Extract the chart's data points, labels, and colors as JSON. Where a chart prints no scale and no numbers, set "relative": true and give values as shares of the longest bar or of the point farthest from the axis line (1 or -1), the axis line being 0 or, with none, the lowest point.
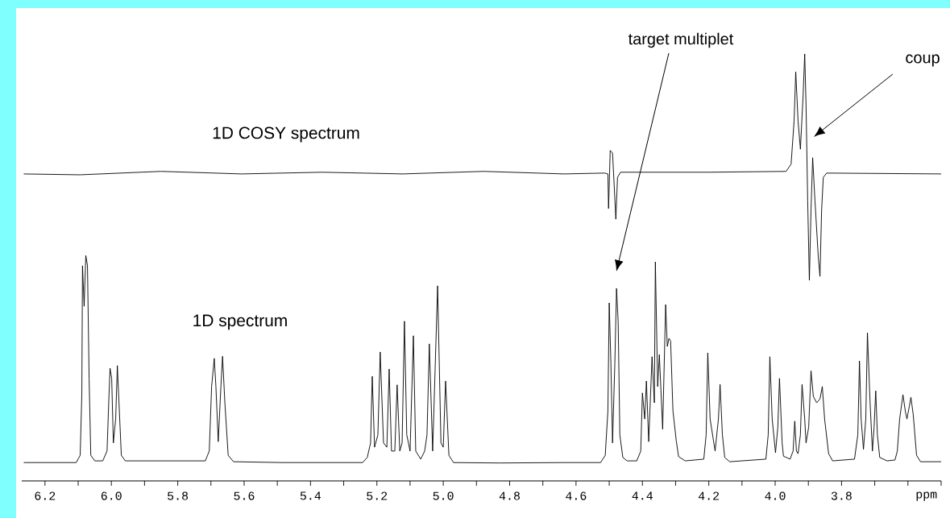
{
  "chart_data": {
    "type": "line",
    "relative": true,
    "xlabel": "ppm",
    "xlim": [
      6.27,
      3.5
    ],
    "xticks": [
      6.2,
      {
        "value": 6.1,
        "label": null
      },
      {
        "value": 6.0,
        "label": "6.0"
      },
      {
        "value": 5.9,
        "label": null
      },
      5.8,
      {
        "value": 5.7,
        "label": null
      },
      5.6,
      {
        "value": 5.5,
        "label": null
      },
      5.4,
      {
        "value": 5.3,
        "label": null
      },
      5.2,
      {
        "value": 5.1,
        "label": null
      },
      {
        "value": 5.0,
        "label": "5.0"
      },
      {
        "value": 4.9,
        "label": null
      },
      4.8,
      {
        "value": 4.7,
        "label": null
      },
      4.6,
      {
        "value": 4.5,
        "label": null
      },
      4.4,
      {
        "value": 4.3,
        "label": null
      },
      4.2,
      {
        "value": 4.1,
        "label": null
      },
      {
        "value": 4.0,
        "label": "4.0"
      },
      {
        "value": 3.9,
        "label": null
      },
      3.8,
      {
        "value": 3.7,
        "label": null
      },
      {
        "value": 3.6,
        "label": null
      },
      {
        "value": 3.5,
        "label": null
      }
    ],
    "series": [
      {
        "name": "1D COSY spectrum",
        "color": "#000000",
        "x": [
          6.264,
          6.094,
          5.851,
          5.608,
          5.365,
          5.122,
          4.879,
          4.636,
          4.514,
          4.504,
          4.502,
          4.5,
          4.497,
          4.49,
          4.485,
          4.48,
          4.475,
          4.466,
          4.199,
          3.967,
          3.952,
          3.943,
          3.938,
          3.931,
          3.924,
          3.916,
          3.911,
          3.907,
          3.902,
          3.897,
          3.892,
          3.887,
          3.88,
          3.87,
          3.865,
          3.86,
          3.855,
          3.845,
          3.5
        ],
        "values": [
          0.719,
          0.717,
          0.725,
          0.719,
          0.723,
          0.719,
          0.725,
          0.719,
          0.721,
          0.719,
          0.638,
          0.692,
          0.774,
          0.768,
          0.692,
          0.613,
          0.711,
          0.723,
          0.723,
          0.725,
          0.742,
          0.843,
          0.958,
          0.843,
          0.777,
          0.9,
          1.0,
          0.881,
          0.655,
          0.47,
          0.636,
          0.757,
          0.655,
          0.523,
          0.479,
          0.636,
          0.711,
          0.721,
          0.719
        ]
      },
      {
        "name": "1D spectrum",
        "color": "#000000",
        "x": [
          6.264,
          6.106,
          6.094,
          6.089,
          6.087,
          6.082,
          6.077,
          6.072,
          6.067,
          6.062,
          6.05,
          6.026,
          6.013,
          6.008,
          6.004,
          5.999,
          5.994,
          5.987,
          5.982,
          5.977,
          5.97,
          5.958,
          5.717,
          5.705,
          5.698,
          5.69,
          5.685,
          5.678,
          5.67,
          5.665,
          5.658,
          5.648,
          5.632,
          5.486,
          5.365,
          5.243,
          5.229,
          5.219,
          5.214,
          5.207,
          5.197,
          5.19,
          5.18,
          5.17,
          5.163,
          5.156,
          5.146,
          5.139,
          5.131,
          5.124,
          5.117,
          5.11,
          5.1,
          5.09,
          5.083,
          5.068,
          5.056,
          5.049,
          5.042,
          5.032,
          5.017,
          5.007,
          5.0,
          4.993,
          4.983,
          4.969,
          4.83,
          4.636,
          4.526,
          4.512,
          4.504,
          4.5,
          4.495,
          4.49,
          4.483,
          4.478,
          4.473,
          4.468,
          4.459,
          4.446,
          4.417,
          4.405,
          4.4,
          4.393,
          4.388,
          4.381,
          4.371,
          4.364,
          4.361,
          4.354,
          4.349,
          4.339,
          4.33,
          4.325,
          4.32,
          4.315,
          4.308,
          4.298,
          4.291,
          4.271,
          4.215,
          4.208,
          4.203,
          4.196,
          4.181,
          4.171,
          4.166,
          4.159,
          4.152,
          4.137,
          4.028,
          4.021,
          4.016,
          4.009,
          3.999,
          3.992,
          3.987,
          3.979,
          3.975,
          3.955,
          3.946,
          3.941,
          3.936,
          3.931,
          3.924,
          3.919,
          3.911,
          3.907,
          3.899,
          3.892,
          3.885,
          3.875,
          3.865,
          3.858,
          3.851,
          3.839,
          3.827,
          3.761,
          3.751,
          3.746,
          3.741,
          3.734,
          3.727,
          3.722,
          3.714,
          3.707,
          3.702,
          3.697,
          3.692,
          3.685,
          3.663,
          3.639,
          3.632,
          3.625,
          3.615,
          3.608,
          3.603,
          3.596,
          3.591,
          3.584,
          3.574,
          3.562,
          3.5
        ],
        "values": [
          0.043,
          0.043,
          0.06,
          0.202,
          0.504,
          0.409,
          0.528,
          0.504,
          0.239,
          0.06,
          0.047,
          0.047,
          0.07,
          0.183,
          0.264,
          0.24,
          0.089,
          0.145,
          0.27,
          0.183,
          0.06,
          0.047,
          0.047,
          0.07,
          0.221,
          0.287,
          0.221,
          0.092,
          0.221,
          0.292,
          0.183,
          0.06,
          0.045,
          0.043,
          0.043,
          0.043,
          0.055,
          0.089,
          0.245,
          0.079,
          0.108,
          0.302,
          0.089,
          0.079,
          0.262,
          0.07,
          0.07,
          0.225,
          0.07,
          0.089,
          0.374,
          0.108,
          0.07,
          0.34,
          0.07,
          0.051,
          0.07,
          0.108,
          0.321,
          0.07,
          0.457,
          0.089,
          0.079,
          0.234,
          0.06,
          0.043,
          0.042,
          0.043,
          0.043,
          0.06,
          0.164,
          0.417,
          0.277,
          0.089,
          0.277,
          0.451,
          0.372,
          0.108,
          0.055,
          0.047,
          0.047,
          0.07,
          0.206,
          0.145,
          0.234,
          0.092,
          0.291,
          0.183,
          0.513,
          0.221,
          0.296,
          0.121,
          0.413,
          0.315,
          0.334,
          0.328,
          0.164,
          0.094,
          0.057,
          0.047,
          0.051,
          0.108,
          0.3,
          0.145,
          0.07,
          0.145,
          0.226,
          0.108,
          0.055,
          0.045,
          0.051,
          0.108,
          0.291,
          0.145,
          0.066,
          0.126,
          0.24,
          0.089,
          0.058,
          0.051,
          0.07,
          0.14,
          0.07,
          0.064,
          0.108,
          0.226,
          0.145,
          0.089,
          0.126,
          0.258,
          0.198,
          0.183,
          0.192,
          0.221,
          0.145,
          0.064,
          0.047,
          0.051,
          0.108,
          0.281,
          0.145,
          0.074,
          0.145,
          0.347,
          0.183,
          0.07,
          0.126,
          0.211,
          0.108,
          0.055,
          0.047,
          0.049,
          0.07,
          0.145,
          0.202,
          0.164,
          0.145,
          0.174,
          0.196,
          0.155,
          0.06,
          0.045,
          0.045
        ]
      }
    ],
    "annotations": [
      "target multiplet",
      "coup"
    ]
  }
}
